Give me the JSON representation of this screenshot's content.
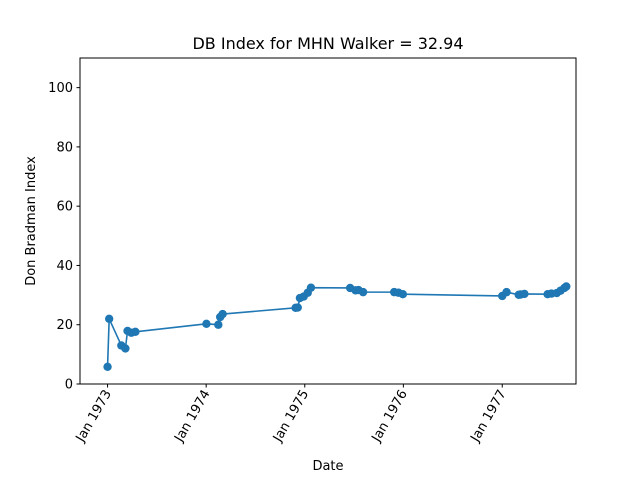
{
  "chart_data": {
    "type": "line",
    "title": "DB Index for MHN Walker = 32.94",
    "xlabel": "Date",
    "ylabel": "Don Bradman Index",
    "ylim": [
      0,
      110
    ],
    "xlim": [
      "1972-09-21",
      "1977-10-01"
    ],
    "yticks": [
      0,
      20,
      40,
      60,
      80,
      100
    ],
    "xticks": [
      {
        "date": "1973-01-01",
        "label": "Jan 1973"
      },
      {
        "date": "1974-01-01",
        "label": "Jan 1974"
      },
      {
        "date": "1975-01-01",
        "label": "Jan 1975"
      },
      {
        "date": "1976-01-01",
        "label": "Jan 1976"
      },
      {
        "date": "1977-01-01",
        "label": "Jan 1977"
      }
    ],
    "grid": false,
    "series": [
      {
        "color": "#1f77b4",
        "marker": "circle",
        "points": [
          {
            "x": "1973-01-01",
            "y": 5.8
          },
          {
            "x": "1973-01-07",
            "y": 22.0
          },
          {
            "x": "1973-02-21",
            "y": 13.0
          },
          {
            "x": "1973-03-08",
            "y": 12.0
          },
          {
            "x": "1973-03-16",
            "y": 17.9
          },
          {
            "x": "1973-03-30",
            "y": 17.3
          },
          {
            "x": "1973-04-14",
            "y": 17.6
          },
          {
            "x": "1974-01-02",
            "y": 20.3
          },
          {
            "x": "1974-02-15",
            "y": 20.0
          },
          {
            "x": "1974-02-22",
            "y": 22.6
          },
          {
            "x": "1974-03-03",
            "y": 23.6
          },
          {
            "x": "1974-11-28",
            "y": 25.7
          },
          {
            "x": "1974-12-06",
            "y": 25.8
          },
          {
            "x": "1974-12-14",
            "y": 29.0
          },
          {
            "x": "1974-12-28",
            "y": 29.5
          },
          {
            "x": "1975-01-12",
            "y": 30.8
          },
          {
            "x": "1975-01-24",
            "y": 32.5
          },
          {
            "x": "1975-06-18",
            "y": 32.4
          },
          {
            "x": "1975-07-08",
            "y": 31.6
          },
          {
            "x": "1975-07-19",
            "y": 31.7
          },
          {
            "x": "1975-08-05",
            "y": 31.0
          },
          {
            "x": "1975-11-28",
            "y": 31.0
          },
          {
            "x": "1975-12-14",
            "y": 30.8
          },
          {
            "x": "1975-12-30",
            "y": 30.3
          },
          {
            "x": "1977-01-01",
            "y": 29.7
          },
          {
            "x": "1977-01-17",
            "y": 31.0
          },
          {
            "x": "1977-03-03",
            "y": 30.1
          },
          {
            "x": "1977-03-10",
            "y": 30.2
          },
          {
            "x": "1977-03-24",
            "y": 30.4
          },
          {
            "x": "1977-06-18",
            "y": 30.3
          },
          {
            "x": "1977-07-02",
            "y": 30.5
          },
          {
            "x": "1977-07-22",
            "y": 30.7
          },
          {
            "x": "1977-08-05",
            "y": 31.5
          },
          {
            "x": "1977-08-19",
            "y": 32.4
          },
          {
            "x": "1977-08-26",
            "y": 32.9
          }
        ]
      }
    ]
  }
}
